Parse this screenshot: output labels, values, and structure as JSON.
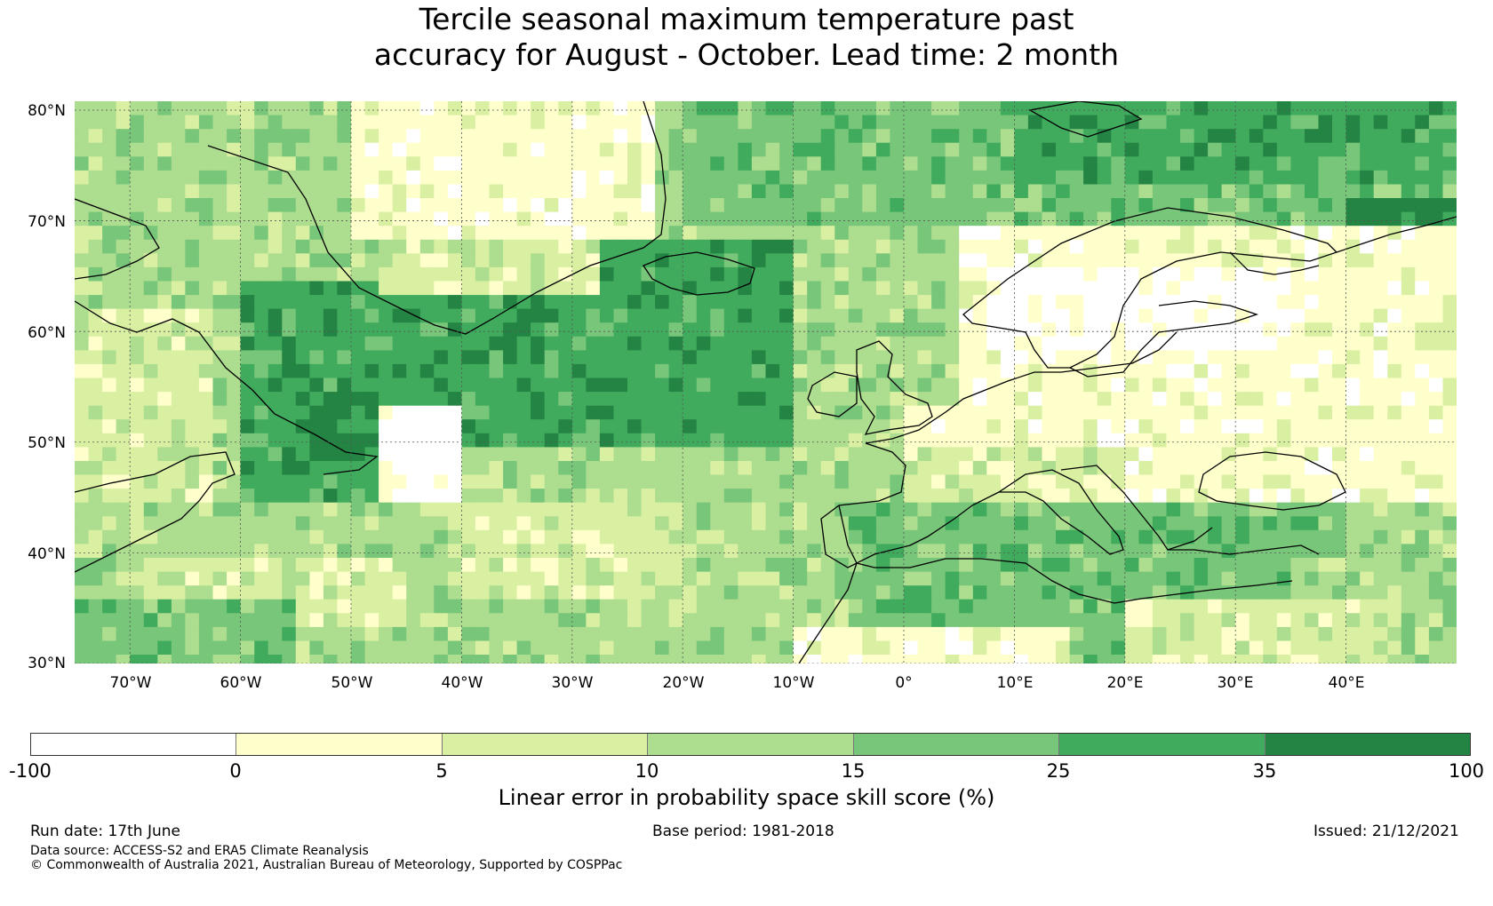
{
  "title": {
    "line1": "Tercile seasonal maximum temperature past",
    "line2": "accuracy for August - October. Lead time: 2 month"
  },
  "map": {
    "lon_range": [
      -75,
      50
    ],
    "lat_range": [
      30,
      80.8
    ],
    "lat_labels": [
      "80°N",
      "70°N",
      "60°N",
      "50°N",
      "40°N",
      "30°N"
    ],
    "lat_values": [
      80,
      70,
      60,
      50,
      40,
      30
    ],
    "lon_labels": [
      "70°W",
      "60°W",
      "50°W",
      "40°W",
      "30°W",
      "20°W",
      "10°W",
      "0°",
      "10°E",
      "20°E",
      "30°E",
      "40°E"
    ],
    "lon_values": [
      -70,
      -60,
      -50,
      -40,
      -30,
      -20,
      -10,
      0,
      10,
      20,
      30,
      40
    ],
    "gridlines": true
  },
  "colorbar": {
    "colors": [
      "#ffffff",
      "#ffffcc",
      "#d9f0a3",
      "#addd8e",
      "#78c679",
      "#41ab5d",
      "#238443"
    ],
    "ticks": [
      "-100",
      "0",
      "5",
      "10",
      "15",
      "25",
      "35",
      "100"
    ],
    "label": "Linear error in probability space skill score (%)"
  },
  "footer": {
    "run_date": "Run date: 17th June",
    "base_period": "Base period: 1981-2018",
    "issued": "Issued: 21/12/2021",
    "data_source": "Data source: ACCESS-S2 and ERA5 Climate Reanalysis",
    "copyright": "© Commonwealth of Australia 2021, Australian Bureau of Meteorology, Supported by COSPPac"
  }
}
